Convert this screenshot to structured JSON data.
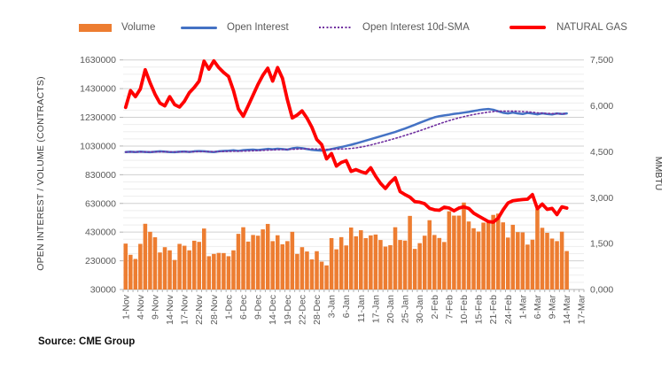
{
  "legend": {
    "items": [
      {
        "label": "Volume",
        "swatch": "bar",
        "color": "#ED7D31"
      },
      {
        "label": "Open Interest",
        "swatch": "line",
        "color": "#4472C4"
      },
      {
        "label": "Open Interest 10d-SMA",
        "swatch": "dotted-line",
        "color": "#7030A0"
      },
      {
        "label": "NATURAL GAS",
        "swatch": "thick-line",
        "color": "#FF0000"
      }
    ]
  },
  "left_axis": {
    "title": "OPEN INTEREST / VOLUME (CONTRACTS)",
    "min": 30000,
    "max": 1630000,
    "major_unit": 200000,
    "minor_unit": 50000,
    "tick_labels": [
      "1630000",
      "1430000",
      "1230000",
      "1030000",
      "830000",
      "630000",
      "430000",
      "230000",
      "30000"
    ]
  },
  "right_axis": {
    "title": "MMBTU",
    "min": 0,
    "max": 7500,
    "major_unit": 1500,
    "tick_labels": [
      "7,500",
      "6,000",
      "4,500",
      "3,000",
      "1,500",
      "0,000"
    ]
  },
  "x_axis": {
    "tick_labels": [
      "1-Nov",
      "4-Nov",
      "9-Nov",
      "14-Nov",
      "17-Nov",
      "22-Nov",
      "28-Nov",
      "1-Dec",
      "6-Dec",
      "9-Dec",
      "14-Dec",
      "19-Dec",
      "22-Dec",
      "28-Dec",
      "3-Jan",
      "6-Jan",
      "11-Jan",
      "17-Jan",
      "20-Jan",
      "25-Jan",
      "30-Jan",
      "2-Feb",
      "7-Feb",
      "10-Feb",
      "15-Feb",
      "21-Feb",
      "24-Feb",
      "1-Mar",
      "6-Mar",
      "9-Mar",
      "14-Mar",
      "17-Mar"
    ],
    "label_interval": 3,
    "total_slots": 94
  },
  "source_note": "Source: CME Group",
  "colors": {
    "volume": "#ED7D31",
    "open_interest": "#4472C4",
    "sma": "#7030A0",
    "natural_gas": "#FF0000",
    "axis_text": "#595959",
    "major_grid": "#D0D0D0",
    "minor_grid": "#EDEDED",
    "axis_line": "#B3B3B3",
    "background": "#FFFFFF"
  },
  "chart_data": {
    "type": "combo(bar+line)",
    "title": "",
    "x_tick_labels": [
      "1-Nov",
      "4-Nov",
      "9-Nov",
      "14-Nov",
      "17-Nov",
      "22-Nov",
      "28-Nov",
      "1-Dec",
      "6-Dec",
      "9-Dec",
      "14-Dec",
      "19-Dec",
      "22-Dec",
      "28-Dec",
      "3-Jan",
      "6-Jan",
      "11-Jan",
      "17-Jan",
      "20-Jan",
      "25-Jan",
      "30-Jan",
      "2-Feb",
      "7-Feb",
      "10-Feb",
      "15-Feb",
      "21-Feb",
      "24-Feb",
      "1-Mar",
      "6-Mar",
      "9-Mar",
      "14-Mar",
      "17-Mar"
    ],
    "x_label_interval": 3,
    "n_points": 91,
    "ylabel_left": "OPEN INTEREST / VOLUME (CONTRACTS)",
    "ylabel_right": "MMBTU",
    "ylim_left": [
      30000,
      1630000
    ],
    "ylim_right": [
      0,
      7500
    ],
    "grid": "horizontal, minor 50000 / major 200000",
    "legend_position": "top",
    "series": [
      {
        "name": "Volume",
        "type": "bar",
        "axis": "left",
        "color": "#ED7D31",
        "values": [
          350000,
          272000,
          243000,
          348000,
          488000,
          432000,
          394000,
          288000,
          325000,
          303000,
          236000,
          348000,
          335000,
          303000,
          370000,
          362000,
          455000,
          262000,
          278000,
          285000,
          284000,
          262000,
          303000,
          418000,
          464000,
          364000,
          410000,
          405000,
          449000,
          487000,
          367000,
          408000,
          345000,
          367000,
          432000,
          278000,
          325000,
          295000,
          240000,
          297000,
          224000,
          198000,
          388000,
          310000,
          395000,
          337000,
          462000,
          401000,
          443000,
          388000,
          407000,
          413000,
          375000,
          329000,
          339000,
          464000,
          375000,
          371000,
          543000,
          313000,
          353000,
          405000,
          513000,
          410000,
          389000,
          361000,
          575000,
          545000,
          545000,
          636000,
          504000,
          457000,
          434000,
          496000,
          511000,
          550000,
          559000,
          498000,
          392000,
          481000,
          430000,
          428000,
          343000,
          377000,
          590000,
          460000,
          425000,
          385000,
          367000,
          433000,
          298000
        ]
      },
      {
        "name": "Open Interest",
        "type": "line",
        "axis": "left",
        "color": "#4472C4",
        "stroke_width": 2.5,
        "values": [
          988000,
          990000,
          988000,
          991000,
          989000,
          987000,
          990000,
          993000,
          991000,
          988000,
          987000,
          990000,
          992000,
          989000,
          993000,
          995000,
          993000,
          990000,
          988000,
          993000,
          996000,
          997000,
          1000000,
          996000,
          1001000,
          1003000,
          1005000,
          1002000,
          1006000,
          1010000,
          1007000,
          1011000,
          1009000,
          1005000,
          1014000,
          1018000,
          1015000,
          1009000,
          1003000,
          1000000,
          998000,
          1002000,
          1009000,
          1016000,
          1023000,
          1031000,
          1039000,
          1048000,
          1058000,
          1068000,
          1078000,
          1088000,
          1098000,
          1108000,
          1118000,
          1128000,
          1140000,
          1152000,
          1165000,
          1178000,
          1192000,
          1205000,
          1218000,
          1230000,
          1238000,
          1243000,
          1248000,
          1254000,
          1258000,
          1263000,
          1268000,
          1274000,
          1280000,
          1285000,
          1288000,
          1283000,
          1272000,
          1262000,
          1257000,
          1263000,
          1257000,
          1253000,
          1261000,
          1256000,
          1251000,
          1258000,
          1253000,
          1250000,
          1257000,
          1253000,
          1257000
        ]
      },
      {
        "name": "Open Interest 10d-SMA",
        "type": "dotted-line",
        "axis": "left",
        "color": "#7030A0",
        "stroke_width": 1.6,
        "values": [
          988000,
          989000,
          988700,
          989200,
          989200,
          988800,
          989000,
          989500,
          989700,
          989500,
          989400,
          989400,
          989800,
          989600,
          990000,
          990800,
          991100,
          990800,
          990500,
          991000,
          991900,
          992600,
          993400,
          994100,
          994900,
          995700,
          996900,
          998100,
          999900,
          1001600,
          1002700,
          1004100,
          1005000,
          1005900,
          1007200,
          1008700,
          1009700,
          1010400,
          1010100,
          1009100,
          1008200,
          1007300,
          1007300,
          1008400,
          1009300,
          1010600,
          1013000,
          1016900,
          1022400,
          1029200,
          1037200,
          1045800,
          1054700,
          1063900,
          1073400,
          1083100,
          1093200,
          1103600,
          1114300,
          1125300,
          1136700,
          1148400,
          1160400,
          1172600,
          1184600,
          1196100,
          1206900,
          1217100,
          1226400,
          1234900,
          1242500,
          1249400,
          1255600,
          1261100,
          1266100,
          1270100,
          1272500,
          1273300,
          1273200,
          1273200,
          1272100,
          1270000,
          1268100,
          1265200,
          1261500,
          1259000,
          1257100,
          1255900,
          1255900,
          1254900,
          1254900
        ]
      },
      {
        "name": "NATURAL GAS",
        "type": "line",
        "axis": "right",
        "color": "#FF0000",
        "stroke_width": 3.8,
        "values": [
          5950,
          6500,
          6300,
          6550,
          7180,
          6750,
          6380,
          6090,
          6000,
          6300,
          6040,
          5960,
          6150,
          6430,
          6600,
          6810,
          7460,
          7200,
          7470,
          7250,
          7090,
          6960,
          6500,
          5900,
          5660,
          6000,
          6350,
          6700,
          7000,
          7230,
          6810,
          7250,
          6900,
          6200,
          5605,
          5700,
          5835,
          5600,
          5300,
          4900,
          4733,
          4267,
          4441,
          4033,
          4150,
          4209,
          3859,
          3917,
          3850,
          3801,
          3977,
          3700,
          3470,
          3300,
          3500,
          3650,
          3200,
          3100,
          3017,
          2870,
          2852,
          2803,
          2653,
          2604,
          2590,
          2690,
          2660,
          2570,
          2660,
          2700,
          2650,
          2495,
          2400,
          2310,
          2220,
          2200,
          2330,
          2600,
          2826,
          2900,
          2920,
          2940,
          2950,
          3100,
          2640,
          2790,
          2617,
          2650,
          2447,
          2700,
          2660
        ]
      }
    ]
  }
}
